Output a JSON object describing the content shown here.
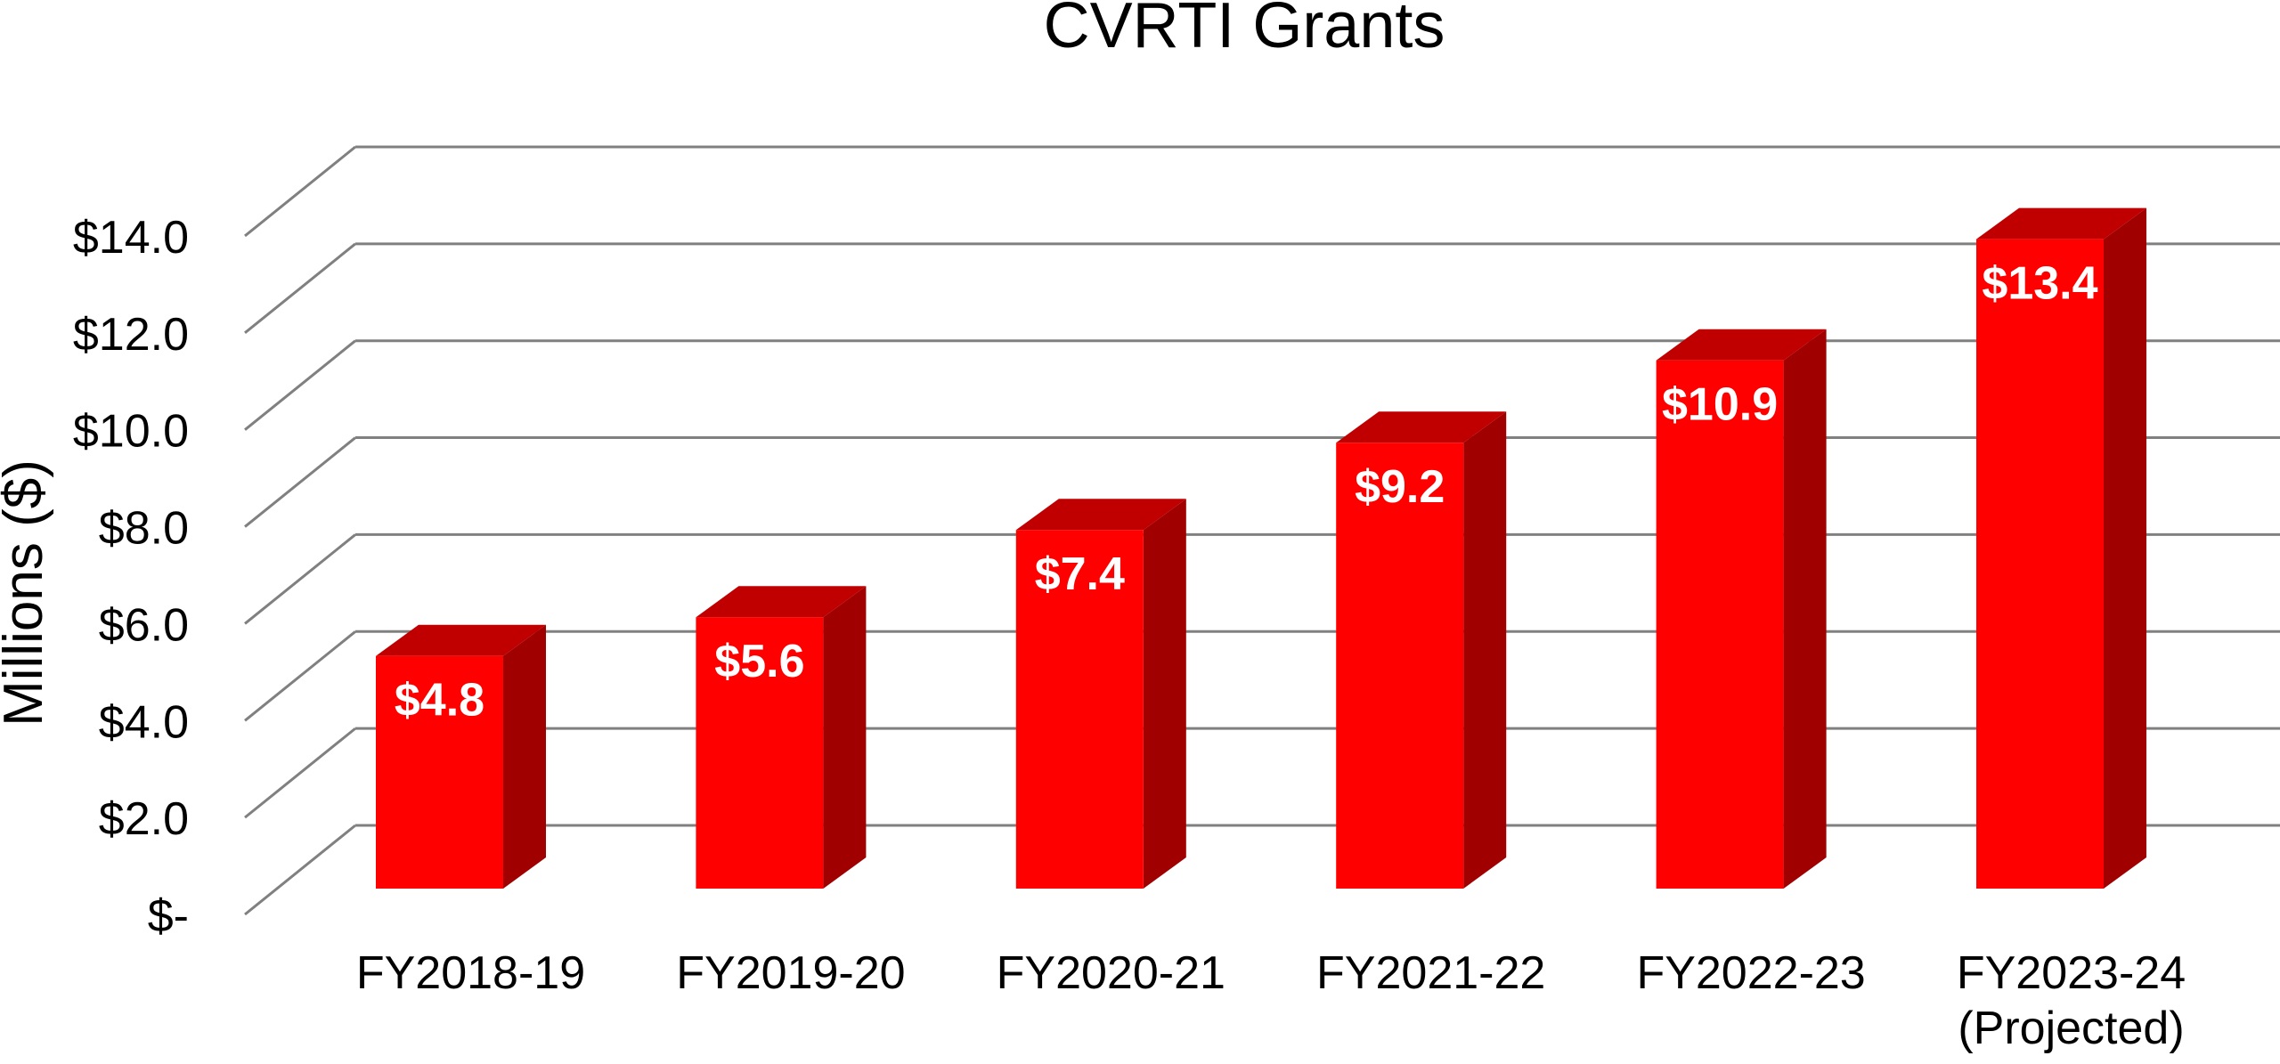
{
  "chart_data": {
    "type": "bar",
    "title": "CVRTI Grants",
    "xlabel": "",
    "ylabel": "Millions ($)",
    "categories": [
      [
        "FY2018-19"
      ],
      [
        "FY2019-20"
      ],
      [
        "FY2020-21"
      ],
      [
        "FY2021-22"
      ],
      [
        "FY2022-23"
      ],
      [
        "FY2023-24",
        "(Projected)"
      ]
    ],
    "values": [
      4.8,
      5.6,
      7.4,
      9.2,
      10.9,
      13.4
    ],
    "data_labels": [
      "$4.8",
      "$5.6",
      "$7.4",
      "$9.2",
      "$10.9",
      "$13.4"
    ],
    "ylim": [
      0,
      14
    ],
    "yticks": [
      0,
      2,
      4,
      6,
      8,
      10,
      12,
      14
    ],
    "ytick_labels": [
      "$-",
      "$2.0",
      "$4.0",
      "$6.0",
      "$8.0",
      "$10.0",
      "$12.0",
      "$14.0"
    ],
    "grid": true,
    "legend": "none",
    "style": "3d-column",
    "colors": {
      "bar_front": "#ff0000",
      "bar_top": "#c00000",
      "bar_side": "#a00000",
      "gridline": "#808080",
      "text": "#000000",
      "data_label": "#ffffff"
    }
  }
}
